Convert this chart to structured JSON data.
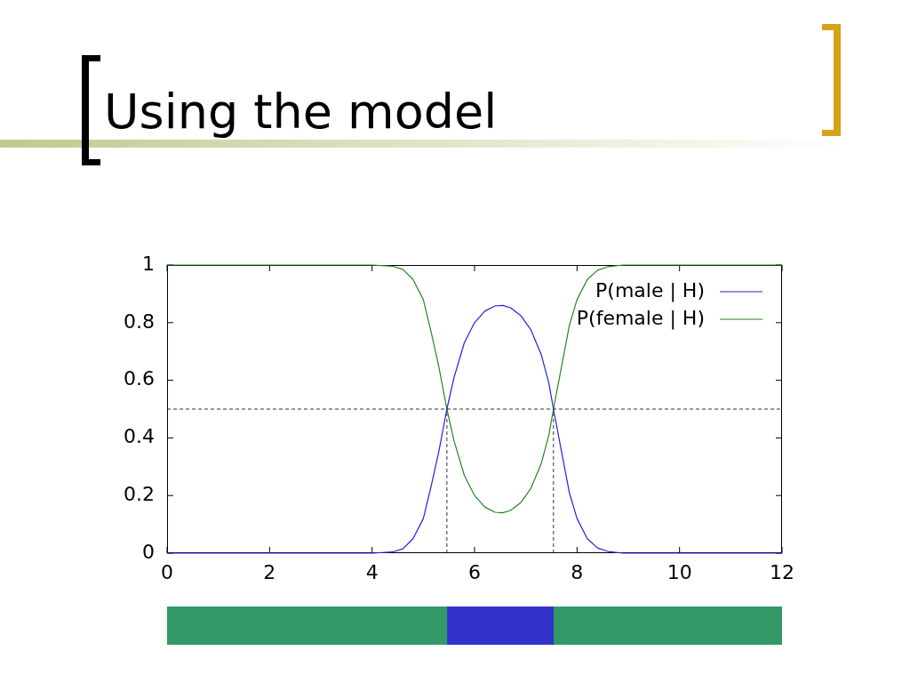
{
  "chart_data": [
    {
      "type": "line",
      "title": "Using the model",
      "x": [
        0,
        4.0,
        4.4,
        4.6,
        4.8,
        5.0,
        5.15,
        5.3,
        5.46,
        5.6,
        5.8,
        6.0,
        6.2,
        6.4,
        6.55,
        6.7,
        6.9,
        7.1,
        7.3,
        7.45,
        7.54,
        7.7,
        7.85,
        8.0,
        8.2,
        8.4,
        8.6,
        8.9,
        12
      ],
      "series": [
        {
          "name": "P(male | H)",
          "color": "#2222dd",
          "values": [
            0,
            0,
            0.004,
            0.015,
            0.05,
            0.12,
            0.23,
            0.35,
            0.5,
            0.61,
            0.73,
            0.8,
            0.84,
            0.858,
            0.86,
            0.852,
            0.825,
            0.775,
            0.69,
            0.59,
            0.5,
            0.35,
            0.21,
            0.12,
            0.05,
            0.018,
            0.006,
            0,
            0
          ]
        },
        {
          "name": "P(female | H)",
          "color": "#228822",
          "values": [
            1,
            1,
            0.996,
            0.985,
            0.95,
            0.88,
            0.77,
            0.65,
            0.5,
            0.39,
            0.27,
            0.2,
            0.16,
            0.142,
            0.14,
            0.148,
            0.175,
            0.225,
            0.31,
            0.41,
            0.5,
            0.65,
            0.79,
            0.88,
            0.95,
            0.982,
            0.994,
            1,
            1
          ]
        }
      ],
      "xlim": [
        0,
        12
      ],
      "ylim": [
        0,
        1
      ],
      "xticks": [
        0,
        2,
        4,
        6,
        8,
        10,
        12
      ],
      "yticks": [
        0,
        0.2,
        0.4,
        0.6,
        0.8,
        1
      ],
      "ref_lines": [
        {
          "axis": "y",
          "value": 0.5,
          "color": "#333333",
          "line_style": "dashed"
        },
        {
          "axis": "x",
          "value": 5.46,
          "color": "#333333",
          "line_style": "dashed"
        },
        {
          "axis": "x",
          "value": 7.54,
          "color": "#333333",
          "line_style": "dashed"
        }
      ],
      "legend": "top right",
      "marker": "none"
    },
    {
      "type": "bar",
      "orientation": "horizontal",
      "stacked": true,
      "categories": [
        null
      ],
      "series": [
        {
          "color": "#339966",
          "values": [
            5.46
          ]
        },
        {
          "color": "#3333cc",
          "values": [
            2.08
          ]
        },
        {
          "color": "#339966",
          "values": [
            4.46
          ]
        }
      ],
      "xlim": [
        0,
        12
      ],
      "tick_labels": false
    }
  ]
}
